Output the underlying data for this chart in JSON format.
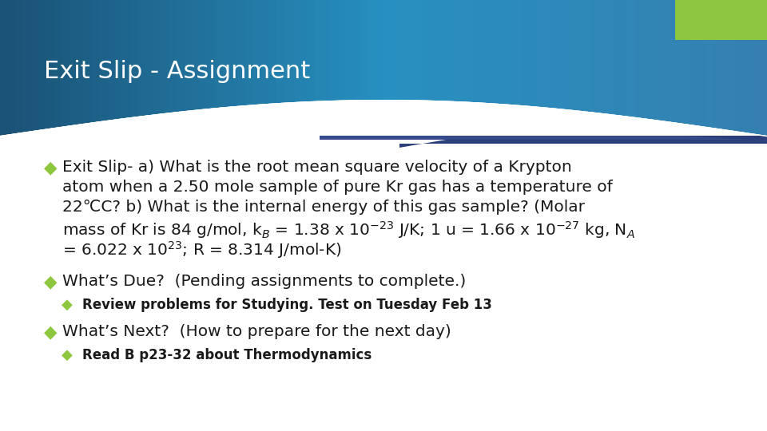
{
  "title": "Exit Slip - Assignment",
  "title_color": "#ffffff",
  "title_fontsize": 22,
  "bg_color": "#ffffff",
  "green_bar_color": "#8dc63f",
  "diamond_color": "#8dc63f",
  "bullet1_line1": "Exit Slip- a) What is the root mean square velocity of a Krypton",
  "bullet1_line2": "atom when a 2.50 mole sample of pure Kr gas has a temperature of",
  "bullet1_line3": "22℃C? b) What is the internal energy of this gas sample? (Molar",
  "bullet1_line4a": "mass of Kr is 84 g/mol, k",
  "bullet1_line4b": " = 1.38 x 10",
  "bullet1_line4c": " J/K; 1 u = 1.66 x 10",
  "bullet1_line4d": " kg, N",
  "bullet1_line5": "= 6.022 x 10",
  "bullet1_line5b": "; R = 8.314 J/mol-K)",
  "bullet2": "What’s Due?  (Pending assignments to complete.)",
  "sub_bullet2": "Review problems for Studying. Test on Tuesday Feb 13",
  "bullet3": "What’s Next?  (How to prepare for the next day)",
  "sub_bullet3": "Read B p23-32 about Thermodynamics",
  "text_color": "#1a1a1a",
  "main_fontsize": 14.5,
  "sub_fontsize": 12
}
